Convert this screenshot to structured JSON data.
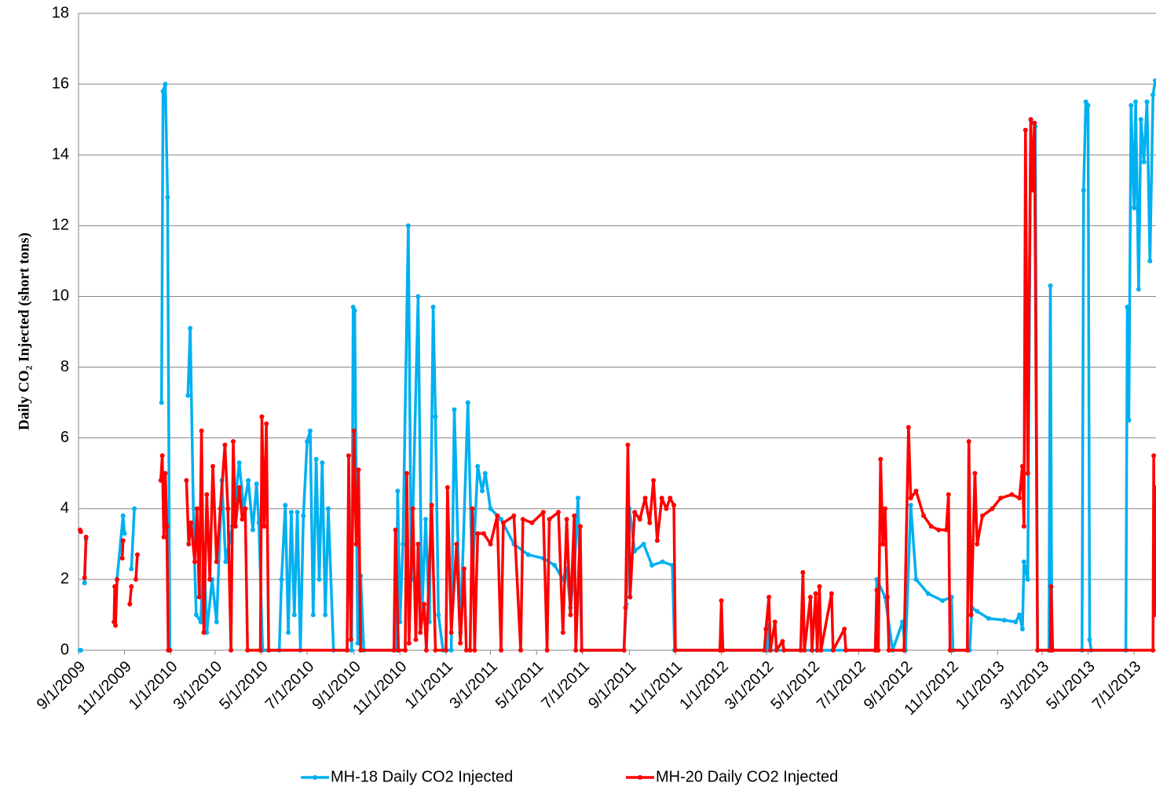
{
  "chart_data": {
    "type": "line",
    "ylabel": "Daily CO₂ Injected (short tons)",
    "ylim": [
      0,
      18
    ],
    "yticks": [
      0,
      2,
      4,
      6,
      8,
      10,
      12,
      14,
      16,
      18
    ],
    "xlim": [
      "9/1/2009",
      "7/30/2013"
    ],
    "xticks": [
      "9/1/2009",
      "11/1/2009",
      "1/1/2010",
      "3/1/2010",
      "5/1/2010",
      "7/1/2010",
      "9/1/2010",
      "11/1/2010",
      "1/1/2011",
      "3/1/2011",
      "5/1/2011",
      "7/1/2011",
      "9/1/2011",
      "11/1/2011",
      "1/1/2012",
      "3/1/2012",
      "5/1/2012",
      "7/1/2012",
      "9/1/2012",
      "11/1/2012",
      "1/1/2013",
      "3/1/2013",
      "5/1/2013",
      "7/1/2013"
    ],
    "grid": true,
    "legend": "bottom",
    "series": [
      {
        "name": "MH-18 Daily CO2 Injected",
        "color": "#00b0f0",
        "x": [
          "9/3/2009",
          "9/4/2009",
          null,
          "9/9/2009",
          "9/11/2009",
          null,
          "10/22/2009",
          "10/30/2009",
          "11/1/2009",
          null,
          "11/10/2009",
          "11/14/2009",
          null,
          "12/20/2009",
          "12/22/2009",
          "12/25/2009",
          "12/28/2009",
          "12/31/2009",
          null,
          "1/24/2010",
          "1/27/2010",
          "2/1/2010",
          "2/4/2010",
          "2/10/2010",
          "2/14/2010",
          "2/18/2010",
          "2/25/2010",
          "3/3/2010",
          "3/10/2010",
          "3/15/2010",
          "3/24/2010",
          "4/2/2010",
          "4/8/2010",
          "4/14/2010",
          "4/20/2010",
          "4/25/2010",
          "4/28/2010",
          "5/3/2010",
          "5/25/2010",
          "5/28/2010",
          "6/2/2010",
          "6/6/2010",
          "6/10/2010",
          "6/14/2010",
          "6/18/2010",
          "6/22/2010",
          "6/26/2010",
          "7/1/2010",
          "7/5/2010",
          "7/9/2010",
          "7/13/2010",
          "7/17/2010",
          "7/21/2010",
          "7/25/2010",
          "7/29/2010",
          "8/5/2010",
          "8/29/2010",
          "8/31/2010",
          "9/2/2010",
          "9/6/2010",
          "9/10/2010",
          "9/14/2010",
          "10/27/2010",
          "10/29/2010",
          "11/1/2010",
          "11/5/2010",
          "11/12/2010",
          "11/16/2010",
          "11/25/2010",
          "11/30/2010",
          "12/5/2010",
          "12/10/2010",
          "12/15/2010",
          "12/18/2010",
          "12/22/2010",
          "12/28/2010",
          "1/8/2011",
          "1/12/2011",
          "1/20/2011",
          "1/30/2011",
          "2/5/2011",
          "2/12/2011",
          "2/18/2011",
          "2/22/2011",
          "3/1/2011",
          "3/15/2011",
          "4/1/2011",
          "4/20/2011",
          "5/10/2011",
          "5/25/2011",
          "6/5/2011",
          "6/10/2011",
          "6/15/2011",
          "6/20/2011",
          "6/25/2011",
          "6/30/2011",
          "8/25/2011",
          "8/28/2011",
          "9/1/2011",
          "9/8/2011",
          "9/20/2011",
          "10/1/2011",
          "10/15/2011",
          "10/28/2011",
          "10/31/2011",
          "3/1/2012",
          "3/3/2012",
          "3/5/2012",
          "7/23/2012",
          "7/25/2012",
          "8/5/2012",
          "8/15/2012",
          "8/28/2012",
          "9/1/2012",
          "9/8/2012",
          "9/15/2012",
          "10/1/2012",
          "10/20/2012",
          "11/1/2012",
          "11/3/2012",
          "11/25/2012",
          "11/28/2012",
          "12/5/2012",
          "12/20/2012",
          "1/10/2013",
          "1/25/2013",
          "1/30/2013",
          "2/3/2013",
          "2/5/2013",
          "2/10/2013",
          "2/14/2013",
          "2/20/2013",
          "2/23/2013",
          "3/10/2013",
          "3/12/2013",
          "3/14/2013",
          "4/23/2013",
          "4/25/2013",
          "4/28/2013",
          "5/1/2013",
          "5/3/2013",
          "5/5/2013",
          "6/20/2013",
          "6/22/2013",
          "6/24/2013",
          "6/27/2013",
          "7/1/2013",
          "7/3/2013",
          "7/7/2013",
          "7/10/2013",
          "7/14/2013",
          "7/18/2013",
          "7/22/2013",
          "7/26/2013",
          "7/29/2013"
        ],
        "values": [
          0,
          0,
          null,
          1.9,
          3.15,
          null,
          2.0,
          3.8,
          3.3,
          null,
          2.3,
          4.0,
          null,
          7.0,
          15.8,
          16.0,
          12.8,
          0,
          null,
          7.2,
          9.1,
          3.0,
          1.0,
          0.8,
          3.0,
          0.5,
          2.0,
          0.8,
          4.8,
          2.5,
          3.5,
          5.3,
          4.0,
          4.8,
          3.4,
          4.7,
          3.6,
          0,
          0,
          2.0,
          4.1,
          0.5,
          3.9,
          1.0,
          3.9,
          0,
          3.8,
          5.9,
          6.2,
          1.0,
          5.4,
          2.0,
          5.3,
          1.0,
          4.0,
          0,
          0,
          9.7,
          9.6,
          0.2,
          2.1,
          0,
          0,
          4.5,
          0.8,
          3.0,
          12.0,
          2.0,
          10.0,
          1.0,
          3.7,
          0.8,
          9.7,
          6.6,
          1.0,
          0,
          0,
          6.8,
          0.5,
          7.0,
          2.0,
          5.2,
          4.5,
          5.0,
          4.0,
          3.7,
          3.0,
          2.7,
          2.6,
          2.4,
          2.0,
          2.3,
          1.2,
          2.2,
          4.3,
          0,
          0,
          1.3,
          4.0,
          2.8,
          3.0,
          2.4,
          2.5,
          2.4,
          0,
          0,
          0.7,
          0,
          0,
          2.0,
          1.5,
          0,
          0.8,
          0,
          4.1,
          2.0,
          1.6,
          1.4,
          1.5,
          0,
          0,
          1.2,
          1.1,
          0.9,
          0.85,
          0.8,
          1.0,
          0.6,
          2.5,
          2.0,
          15.0,
          14.8,
          0,
          0,
          10.3,
          0,
          0,
          13.0,
          15.5,
          15.4,
          0.3,
          0,
          0,
          9.7,
          6.5,
          15.4,
          12.5,
          15.5,
          10.2,
          15.0,
          13.8,
          15.5,
          11.0,
          15.7,
          16.1
        ]
      },
      {
        "name": "MH-20 Daily CO2 Injected",
        "color": "#ff0000",
        "x": [
          "9/3/2009",
          "9/4/2009",
          null,
          "9/9/2009",
          "9/11/2009",
          null,
          "10/18/2009",
          "10/19/2009",
          "10/20/2009",
          "10/22/2009",
          null,
          "10/29/2009",
          "10/30/2009",
          null,
          "11/8/2009",
          "11/10/2009",
          null,
          "11/16/2009",
          "11/18/2009",
          null,
          "12/19/2009",
          "12/21/2009",
          "12/23/2009",
          "12/25/2009",
          "12/27/2009",
          "12/29/2009",
          "12/31/2009",
          null,
          "1/22/2010",
          "1/25/2010",
          "1/28/2010",
          "2/2/2010",
          "2/5/2010",
          "2/8/2010",
          "2/11/2010",
          "2/14/2010",
          "2/18/2010",
          "2/22/2010",
          "2/26/2010",
          "3/3/2010",
          "3/8/2010",
          "3/14/2010",
          "3/18/2010",
          "3/22/2010",
          "3/25/2010",
          "3/28/2010",
          "4/2/2010",
          "4/6/2010",
          "4/10/2010",
          "4/13/2010",
          "4/30/2010",
          "5/2/2010",
          "5/5/2010",
          "5/8/2010",
          "5/11/2010",
          "8/23/2010",
          "8/25/2010",
          "8/28/2010",
          "9/1/2010",
          "9/4/2010",
          "9/7/2010",
          "9/10/2010",
          "10/24/2010",
          "10/26/2010",
          "10/30/2010",
          "11/8/2010",
          "11/10/2010",
          "11/13/2010",
          "11/18/2010",
          "11/22/2010",
          "11/25/2010",
          "11/28/2010",
          "12/3/2010",
          "12/6/2010",
          "12/13/2010",
          "12/18/2010",
          "1/1/2011",
          "1/3/2011",
          "1/8/2011",
          "1/15/2011",
          "1/20/2011",
          "1/25/2011",
          "1/28/2011",
          "2/2/2011",
          "2/5/2011",
          "2/8/2011",
          "2/12/2011",
          "2/20/2011",
          "3/1/2011",
          "3/10/2011",
          "3/15/2011",
          "3/18/2011",
          "4/1/2011",
          "4/10/2011",
          "4/13/2011",
          "4/25/2011",
          "5/10/2011",
          "5/15/2011",
          "5/18/2011",
          "5/30/2011",
          "6/5/2011",
          "6/10/2011",
          "6/15/2011",
          "6/20/2011",
          "6/22/2011",
          "6/28/2011",
          "6/30/2011",
          "8/25/2011",
          "8/27/2011",
          "8/30/2011",
          "9/2/2011",
          "9/8/2011",
          "9/15/2011",
          "9/22/2011",
          "9/28/2011",
          "10/3/2011",
          "10/8/2011",
          "10/14/2011",
          "10/20/2011",
          "10/25/2011",
          "10/30/2011",
          "11/1/2011",
          "12/30/2011",
          "1/1/2012",
          "1/3/2012",
          "2/27/2012",
          "2/29/2012",
          "3/4/2012",
          "3/6/2012",
          "3/12/2012",
          "3/14/2012",
          "3/22/2012",
          "3/24/2012",
          "4/15/2012",
          "4/18/2012",
          "4/20/2012",
          "4/28/2012",
          "4/30/2012",
          "5/5/2012",
          "5/7/2012",
          "5/10/2012",
          "5/12/2012",
          "5/26/2012",
          "5/28/2012",
          "6/12/2012",
          "6/14/2012",
          "7/23/2012",
          "7/25/2012",
          "7/27/2012",
          "7/30/2012",
          "8/2/2012",
          "8/5/2012",
          "8/8/2012",
          "8/10/2012",
          "8/30/2012",
          "9/5/2012",
          "9/8/2012",
          "9/15/2012",
          "9/25/2012",
          "10/5/2012",
          "10/15/2012",
          "10/25/2012",
          "10/28/2012",
          "10/30/2012",
          "11/22/2012",
          "11/24/2012",
          "11/27/2012",
          "12/2/2012",
          "12/5/2012",
          "12/12/2012",
          "12/25/2012",
          "1/5/2013",
          "1/20/2013",
          "1/30/2013",
          "2/3/2013",
          "2/5/2013",
          "2/7/2013",
          "2/10/2013",
          "2/14/2013",
          "2/16/2013",
          "2/19/2013",
          "2/23/2013",
          "3/12/2013",
          "3/13/2013",
          "3/15/2013",
          "7/26/2013",
          "7/27/2013",
          "7/28/2013",
          "7/30/2013"
        ],
        "values": [
          3.4,
          3.35,
          null,
          2.05,
          3.2,
          null,
          0.8,
          1.8,
          0.7,
          2.0,
          null,
          2.6,
          3.1,
          null,
          1.3,
          1.8,
          null,
          2.0,
          2.7,
          null,
          4.8,
          5.5,
          3.2,
          5.0,
          3.5,
          0,
          0,
          null,
          4.8,
          3.0,
          3.6,
          2.5,
          4.0,
          1.5,
          6.2,
          0.5,
          4.4,
          2.0,
          5.2,
          2.5,
          4.0,
          5.8,
          4.0,
          0,
          5.9,
          3.5,
          4.6,
          3.7,
          4.0,
          0,
          0,
          6.6,
          3.5,
          6.4,
          0,
          0,
          5.5,
          0.3,
          6.2,
          3.0,
          5.1,
          0,
          0,
          3.4,
          0,
          0,
          5.0,
          0.2,
          4.0,
          0.3,
          3.0,
          0.5,
          1.3,
          0,
          4.1,
          0,
          0,
          4.6,
          0.5,
          3.0,
          0.2,
          2.3,
          0,
          0,
          4.0,
          0,
          3.3,
          3.3,
          3.0,
          3.8,
          0,
          3.6,
          3.8,
          0,
          3.7,
          3.6,
          3.9,
          0,
          3.7,
          3.9,
          0.5,
          3.7,
          1.0,
          3.8,
          0,
          3.5,
          0,
          0,
          1.2,
          5.8,
          1.5,
          3.9,
          3.7,
          4.3,
          3.6,
          4.8,
          3.1,
          4.3,
          4.0,
          4.3,
          4.1,
          0,
          0,
          1.4,
          0,
          0,
          0.6,
          1.5,
          0,
          0.8,
          0,
          0.25,
          0,
          0,
          2.2,
          0,
          1.5,
          0,
          1.6,
          0,
          1.8,
          0,
          1.6,
          0,
          0.6,
          0,
          0,
          1.7,
          0,
          5.4,
          3.0,
          4.0,
          1.5,
          0,
          0,
          6.3,
          4.3,
          4.5,
          3.8,
          3.5,
          3.4,
          3.4,
          4.4,
          0,
          0,
          5.9,
          1.0,
          5.0,
          3.0,
          3.8,
          4.0,
          4.3,
          4.4,
          4.3,
          5.2,
          3.5,
          14.7,
          5.0,
          15.0,
          13.0,
          14.9,
          0,
          0,
          1.8,
          0,
          0,
          5.5,
          1.0,
          4.6
        ]
      }
    ]
  }
}
